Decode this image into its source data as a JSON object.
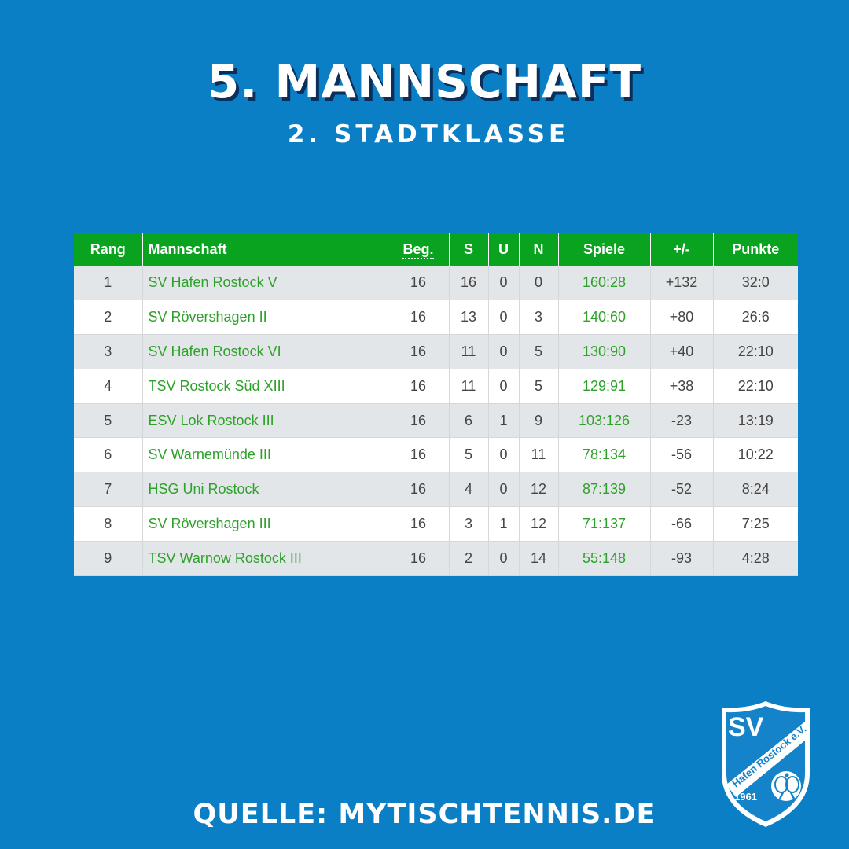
{
  "header": {
    "title": "5. MANNSCHAFT",
    "subtitle": "2. STADTKLASSE"
  },
  "table": {
    "columns": [
      "Rang",
      "Mannschaft",
      "Beg.",
      "S",
      "U",
      "N",
      "Spiele",
      "+/-",
      "Punkte"
    ],
    "rows": [
      {
        "rang": "1",
        "team": "SV Hafen Rostock V",
        "beg": "16",
        "s": "16",
        "u": "0",
        "n": "0",
        "spiele": "160:28",
        "diff": "+132",
        "punkte": "32:0"
      },
      {
        "rang": "2",
        "team": "SV Rövershagen II",
        "beg": "16",
        "s": "13",
        "u": "0",
        "n": "3",
        "spiele": "140:60",
        "diff": "+80",
        "punkte": "26:6"
      },
      {
        "rang": "3",
        "team": "SV Hafen Rostock VI",
        "beg": "16",
        "s": "11",
        "u": "0",
        "n": "5",
        "spiele": "130:90",
        "diff": "+40",
        "punkte": "22:10"
      },
      {
        "rang": "4",
        "team": "TSV Rostock Süd XIII",
        "beg": "16",
        "s": "11",
        "u": "0",
        "n": "5",
        "spiele": "129:91",
        "diff": "+38",
        "punkte": "22:10"
      },
      {
        "rang": "5",
        "team": "ESV Lok Rostock III",
        "beg": "16",
        "s": "6",
        "u": "1",
        "n": "9",
        "spiele": "103:126",
        "diff": "-23",
        "punkte": "13:19"
      },
      {
        "rang": "6",
        "team": "SV Warnemünde III",
        "beg": "16",
        "s": "5",
        "u": "0",
        "n": "11",
        "spiele": "78:134",
        "diff": "-56",
        "punkte": "10:22"
      },
      {
        "rang": "7",
        "team": "HSG Uni Rostock",
        "beg": "16",
        "s": "4",
        "u": "0",
        "n": "12",
        "spiele": "87:139",
        "diff": "-52",
        "punkte": "8:24"
      },
      {
        "rang": "8",
        "team": "SV Rövershagen III",
        "beg": "16",
        "s": "3",
        "u": "1",
        "n": "12",
        "spiele": "71:137",
        "diff": "-66",
        "punkte": "7:25"
      },
      {
        "rang": "9",
        "team": "TSV Warnow Rostock III",
        "beg": "16",
        "s": "2",
        "u": "0",
        "n": "14",
        "spiele": "55:148",
        "diff": "-93",
        "punkte": "4:28"
      }
    ]
  },
  "footer": {
    "source": "QUELLE: MYTISCHTENNIS.DE"
  },
  "logo": {
    "initials": "SV",
    "club": "Hafen Rostock e.V.",
    "year": "1961"
  },
  "colors": {
    "background": "#0a7fc6",
    "header_green": "#0aa320",
    "team_link": "#2ea12a",
    "title_shadow": "#0b2e5a"
  }
}
